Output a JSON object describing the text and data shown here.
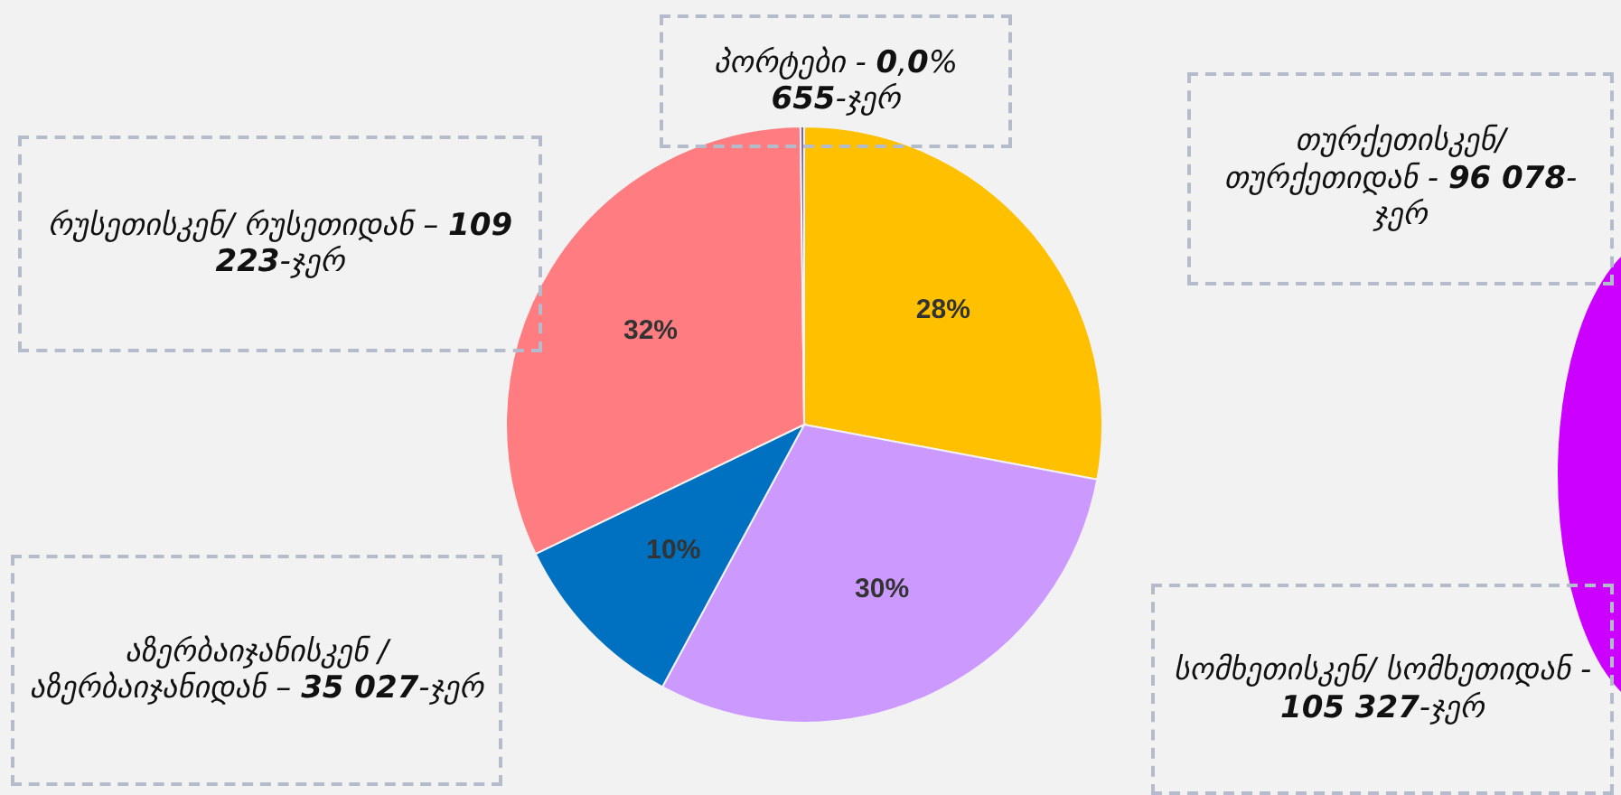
{
  "chart_data": {
    "type": "pie",
    "categories": [
      "თურქეთისკენ/ თურქეთიდან - 96 078-ჯერ",
      "სომხეთისკენ/ სომხეთიდან - 105 327-ჯერ",
      "აზერბაიჯანისკენ /აზერბაიჯანიდან – 35 027-ჯერ",
      "რუსეთისკენ/ რუსეთიდან – 109 223-ჯერ",
      "პორტები - 0,0% 655-ჯერ"
    ],
    "values": [
      28,
      30,
      10,
      32,
      0.2
    ],
    "colors": [
      "#ffc000",
      "#cc99ff",
      "#0070c0",
      "#ff7c80",
      "#8064a2"
    ],
    "value_labels": [
      "28%",
      "30%",
      "10%",
      "32%",
      null
    ]
  }
}
